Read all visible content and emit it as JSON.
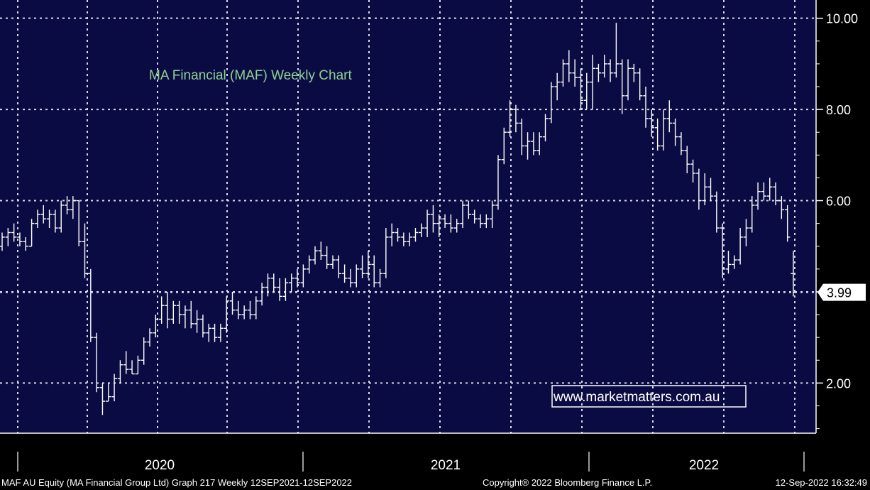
{
  "chart_data": {
    "type": "ohlc",
    "title": "MA Financial (MAF) Weekly Chart",
    "watermark": "www.marketmatters.com.au",
    "ylim": [
      0.9,
      10.4
    ],
    "y_ticks": [
      2.0,
      4.0,
      6.0,
      8.0,
      10.0
    ],
    "y_tick_labels": [
      "2.00",
      "4.00",
      "6.00",
      "8.00",
      "10.00"
    ],
    "x_tick_labels": [
      "2020",
      "2021",
      "2022"
    ],
    "last_price_label": "3.99",
    "last_price": 3.99,
    "grid": true,
    "axis_side": "right",
    "colors": {
      "plot_background": "#0b0b44",
      "grid": "#d8d8e8",
      "bars": "#ffffff",
      "title": "#8fd18f",
      "text": "#ffffff",
      "background": "#000000"
    },
    "bars_ohlc": [
      [
        5.0,
        5.3,
        4.9,
        5.2
      ],
      [
        5.2,
        5.4,
        5.0,
        5.3
      ],
      [
        5.3,
        5.5,
        5.1,
        5.2
      ],
      [
        5.2,
        5.3,
        5.0,
        5.1
      ],
      [
        5.1,
        5.2,
        4.9,
        5.0
      ],
      [
        5.0,
        5.6,
        5.0,
        5.5
      ],
      [
        5.5,
        5.8,
        5.4,
        5.7
      ],
      [
        5.7,
        5.9,
        5.5,
        5.6
      ],
      [
        5.6,
        5.8,
        5.4,
        5.7
      ],
      [
        5.7,
        5.8,
        5.3,
        5.4
      ],
      [
        5.4,
        6.0,
        5.3,
        5.9
      ],
      [
        5.9,
        6.1,
        5.7,
        5.8
      ],
      [
        5.8,
        6.1,
        5.6,
        6.0
      ],
      [
        6.0,
        6.0,
        5.0,
        5.1
      ],
      [
        5.1,
        5.5,
        4.3,
        4.4
      ],
      [
        4.4,
        4.5,
        2.9,
        3.0
      ],
      [
        3.0,
        3.1,
        1.8,
        1.9
      ],
      [
        1.9,
        2.0,
        1.3,
        1.6
      ],
      [
        1.6,
        2.0,
        1.6,
        1.7
      ],
      [
        1.7,
        2.2,
        1.6,
        2.1
      ],
      [
        2.1,
        2.5,
        2.0,
        2.4
      ],
      [
        2.4,
        2.7,
        2.2,
        2.3
      ],
      [
        2.3,
        2.5,
        2.2,
        2.2
      ],
      [
        2.2,
        2.6,
        2.2,
        2.5
      ],
      [
        2.5,
        3.0,
        2.4,
        2.9
      ],
      [
        2.9,
        3.2,
        2.8,
        3.1
      ],
      [
        3.1,
        3.5,
        3.0,
        3.4
      ],
      [
        3.4,
        3.9,
        3.3,
        3.7
      ],
      [
        3.7,
        4.0,
        3.2,
        3.4
      ],
      [
        3.4,
        3.8,
        3.3,
        3.7
      ],
      [
        3.7,
        3.8,
        3.3,
        3.5
      ],
      [
        3.5,
        3.7,
        3.2,
        3.6
      ],
      [
        3.6,
        3.8,
        3.2,
        3.3
      ],
      [
        3.3,
        3.6,
        3.1,
        3.4
      ],
      [
        3.4,
        3.5,
        3.0,
        3.1
      ],
      [
        3.1,
        3.3,
        2.9,
        3.2
      ],
      [
        3.2,
        3.3,
        2.9,
        3.0
      ],
      [
        3.0,
        3.3,
        2.9,
        3.2
      ],
      [
        3.2,
        3.9,
        3.1,
        3.8
      ],
      [
        3.8,
        4.0,
        3.5,
        3.6
      ],
      [
        3.6,
        3.8,
        3.4,
        3.5
      ],
      [
        3.5,
        3.7,
        3.4,
        3.6
      ],
      [
        3.6,
        3.8,
        3.4,
        3.5
      ],
      [
        3.5,
        3.9,
        3.4,
        3.8
      ],
      [
        3.8,
        4.2,
        3.7,
        4.1
      ],
      [
        4.1,
        4.4,
        3.9,
        4.3
      ],
      [
        4.3,
        4.4,
        4.0,
        4.1
      ],
      [
        4.1,
        4.3,
        3.8,
        3.9
      ],
      [
        3.9,
        4.3,
        3.8,
        4.2
      ],
      [
        4.2,
        4.4,
        4.0,
        4.3
      ],
      [
        4.3,
        4.5,
        4.1,
        4.2
      ],
      [
        4.2,
        4.6,
        4.1,
        4.5
      ],
      [
        4.5,
        4.8,
        4.4,
        4.7
      ],
      [
        4.7,
        5.0,
        4.6,
        4.9
      ],
      [
        4.9,
        5.1,
        4.7,
        4.8
      ],
      [
        4.8,
        5.0,
        4.5,
        4.6
      ],
      [
        4.6,
        4.8,
        4.5,
        4.7
      ],
      [
        4.7,
        4.8,
        4.3,
        4.4
      ],
      [
        4.4,
        4.6,
        4.2,
        4.3
      ],
      [
        4.3,
        4.5,
        4.1,
        4.2
      ],
      [
        4.2,
        4.6,
        4.1,
        4.5
      ],
      [
        4.5,
        4.8,
        4.3,
        4.4
      ],
      [
        4.4,
        4.9,
        4.3,
        4.6
      ],
      [
        4.6,
        4.8,
        4.1,
        4.2
      ],
      [
        4.2,
        4.5,
        4.1,
        4.4
      ],
      [
        4.4,
        5.4,
        4.3,
        5.2
      ],
      [
        5.2,
        5.5,
        5.0,
        5.3
      ],
      [
        5.3,
        5.4,
        5.1,
        5.2
      ],
      [
        5.2,
        5.3,
        5.0,
        5.1
      ],
      [
        5.1,
        5.3,
        5.0,
        5.2
      ],
      [
        5.2,
        5.4,
        5.1,
        5.3
      ],
      [
        5.3,
        5.5,
        5.2,
        5.4
      ],
      [
        5.4,
        5.8,
        5.2,
        5.7
      ],
      [
        5.7,
        5.9,
        5.3,
        5.5
      ],
      [
        5.5,
        5.7,
        5.2,
        5.6
      ],
      [
        5.6,
        5.7,
        5.4,
        5.5
      ],
      [
        5.5,
        5.7,
        5.3,
        5.4
      ],
      [
        5.4,
        5.6,
        5.3,
        5.5
      ],
      [
        5.5,
        6.0,
        5.4,
        5.9
      ],
      [
        5.9,
        6.0,
        5.6,
        5.7
      ],
      [
        5.7,
        5.8,
        5.5,
        5.6
      ],
      [
        5.6,
        5.7,
        5.4,
        5.5
      ],
      [
        5.5,
        5.7,
        5.4,
        5.6
      ],
      [
        5.6,
        6.0,
        5.4,
        5.9
      ],
      [
        5.9,
        7.0,
        5.8,
        6.9
      ],
      [
        6.9,
        7.6,
        6.8,
        7.5
      ],
      [
        7.5,
        8.2,
        7.4,
        8.0
      ],
      [
        8.0,
        8.1,
        7.5,
        7.7
      ],
      [
        7.7,
        7.8,
        7.0,
        7.2
      ],
      [
        7.2,
        7.5,
        6.9,
        7.3
      ],
      [
        7.3,
        7.5,
        7.0,
        7.1
      ],
      [
        7.1,
        7.5,
        7.0,
        7.4
      ],
      [
        7.4,
        7.9,
        7.3,
        7.8
      ],
      [
        7.8,
        8.6,
        7.7,
        8.5
      ],
      [
        8.5,
        8.8,
        8.2,
        8.6
      ],
      [
        8.6,
        9.1,
        8.5,
        9.0
      ],
      [
        9.0,
        9.3,
        8.6,
        8.8
      ],
      [
        8.8,
        9.1,
        8.5,
        8.7
      ],
      [
        8.7,
        8.9,
        8.0,
        8.2
      ],
      [
        8.2,
        8.8,
        8.0,
        8.6
      ],
      [
        8.6,
        9.2,
        8.0,
        8.9
      ],
      [
        8.9,
        9.0,
        8.6,
        8.8
      ],
      [
        8.8,
        9.2,
        8.7,
        9.0
      ],
      [
        9.0,
        9.1,
        8.6,
        8.8
      ],
      [
        8.8,
        9.9,
        8.7,
        9.0
      ],
      [
        9.0,
        9.1,
        7.9,
        8.3
      ],
      [
        8.3,
        9.1,
        8.2,
        8.9
      ],
      [
        8.9,
        9.0,
        8.6,
        8.8
      ],
      [
        8.8,
        8.9,
        8.2,
        8.3
      ],
      [
        8.3,
        8.5,
        7.6,
        7.8
      ],
      [
        7.8,
        8.0,
        7.4,
        7.6
      ],
      [
        7.6,
        7.8,
        7.1,
        7.2
      ],
      [
        7.2,
        8.0,
        7.1,
        7.8
      ],
      [
        7.8,
        8.2,
        7.5,
        7.7
      ],
      [
        7.7,
        7.8,
        7.2,
        7.4
      ],
      [
        7.4,
        7.5,
        7.0,
        7.1
      ],
      [
        7.1,
        7.2,
        6.6,
        6.8
      ],
      [
        6.8,
        6.9,
        6.4,
        6.6
      ],
      [
        6.6,
        6.7,
        5.8,
        6.0
      ],
      [
        6.0,
        6.6,
        5.9,
        6.3
      ],
      [
        6.3,
        6.5,
        6.0,
        6.1
      ],
      [
        6.1,
        6.2,
        5.3,
        5.4
      ],
      [
        5.4,
        5.5,
        4.3,
        4.5
      ],
      [
        4.5,
        4.9,
        4.4,
        4.6
      ],
      [
        4.6,
        4.8,
        4.5,
        4.7
      ],
      [
        4.7,
        5.4,
        4.6,
        5.2
      ],
      [
        5.2,
        5.6,
        5.0,
        5.4
      ],
      [
        5.4,
        6.1,
        5.3,
        5.9
      ],
      [
        5.9,
        6.4,
        5.8,
        6.2
      ],
      [
        6.2,
        6.4,
        6.0,
        6.1
      ],
      [
        6.1,
        6.5,
        6.0,
        6.3
      ],
      [
        6.3,
        6.4,
        5.9,
        6.0
      ],
      [
        6.0,
        6.1,
        5.6,
        5.8
      ],
      [
        5.8,
        5.9,
        5.1,
        5.2
      ],
      [
        4.4,
        4.9,
        3.9,
        3.99
      ]
    ]
  },
  "footer": {
    "left": "MAF AU Equity (MA Financial Group Ltd) Graph 217  Weekly 12SEP2021-12SEP2022",
    "middle": "Copyright® 2022 Bloomberg Finance L.P.",
    "right": "12-Sep-2022 16:32:49"
  }
}
